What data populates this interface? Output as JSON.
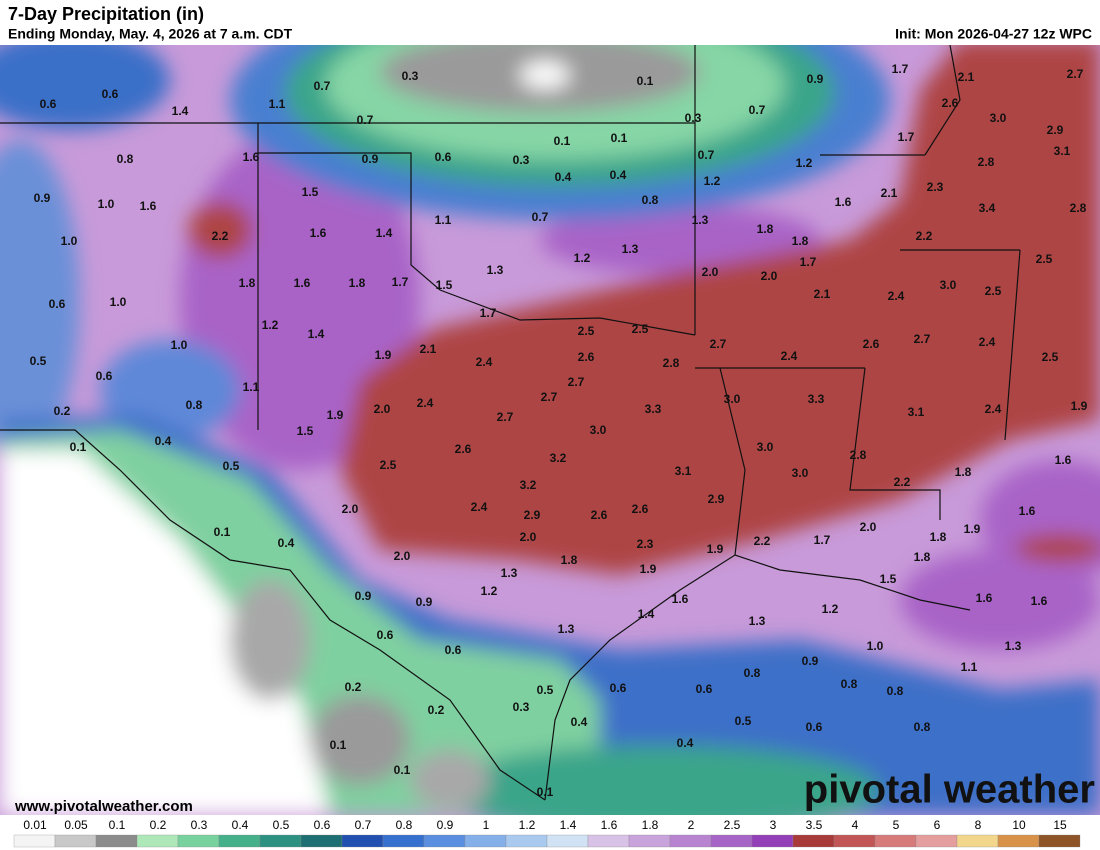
{
  "map": {
    "title": "7-Day Precipitation (in)",
    "subtitle": "Ending Monday, May. 4, 2026 at 7 a.m. CDT",
    "init": "Init: Mon 2026-04-27 12z WPC",
    "website": "www.pivotalweather.com",
    "watermark": "pivotal weather",
    "values": [
      "0.6",
      "0.6",
      "1.4",
      "1.1",
      "0.7",
      "0.3",
      "0.1",
      "0.9",
      "1.7",
      "2.1",
      "2.7",
      "0.7",
      "0.3",
      "0.7",
      "2.6",
      "3.0",
      "2.9",
      "0.8",
      "1.6",
      "0.9",
      "0.6",
      "0.3",
      "0.1",
      "0.1",
      "0.7",
      "1.2",
      "1.7",
      "2.8",
      "3.1",
      "0.9",
      "1.0",
      "1.6",
      "1.5",
      "0.4",
      "0.4",
      "1.2",
      "0.8",
      "1.6",
      "2.1",
      "2.3",
      "3.4",
      "2.8",
      "1.0",
      "2.2",
      "1.6",
      "1.4",
      "1.1",
      "0.7",
      "1.3",
      "1.8",
      "1.8",
      "2.2",
      "1.3",
      "1.2",
      "1.3",
      "2.0",
      "2.0",
      "1.7",
      "2.5",
      "0.6",
      "1.0",
      "1.8",
      "1.6",
      "1.8",
      "1.7",
      "1.5",
      "1.7",
      "2.1",
      "2.4",
      "3.0",
      "2.5",
      "1.2",
      "1.4",
      "2.5",
      "2.5",
      "2.7",
      "2.4",
      "2.6",
      "2.7",
      "2.4",
      "2.5",
      "0.5",
      "0.6",
      "1.0",
      "1.9",
      "2.1",
      "2.4",
      "2.6",
      "2.8",
      "0.2",
      "0.8",
      "1.1",
      "1.9",
      "2.0",
      "2.4",
      "2.7",
      "2.7",
      "3.3",
      "3.0",
      "3.3",
      "3.1",
      "2.4",
      "1.9",
      "0.1",
      "0.4",
      "1.5",
      "2.7",
      "3.0",
      "2.6",
      "3.2",
      "3.1",
      "3.0",
      "3.0",
      "2.8",
      "1.8",
      "1.6",
      "0.5",
      "2.5",
      "3.2",
      "2.9",
      "2.2",
      "2.0",
      "2.4",
      "2.9",
      "2.6",
      "2.6",
      "2.0",
      "1.6",
      "1.9",
      "0.1",
      "0.4",
      "2.0",
      "2.3",
      "1.9",
      "2.2",
      "1.7",
      "1.8",
      "2.0",
      "1.3",
      "1.8",
      "1.9",
      "1.8",
      "1.2",
      "1.6",
      "1.5",
      "0.9",
      "0.9",
      "1.4",
      "1.2",
      "1.6",
      "1.6",
      "0.6",
      "1.3",
      "1.3",
      "1.0",
      "1.3",
      "0.6",
      "0.9",
      "1.1",
      "0.2",
      "0.5",
      "0.6",
      "0.6",
      "0.8",
      "0.8",
      "0.8",
      "0.2",
      "0.3",
      "0.4",
      "0.5",
      "0.6",
      "0.8",
      "0.1",
      "0.4",
      "0.1",
      "0.1"
    ]
  },
  "colorbar": {
    "labels": [
      "0.01",
      "0.05",
      "0.1",
      "0.2",
      "0.3",
      "0.4",
      "0.5",
      "0.6",
      "0.7",
      "0.8",
      "0.9",
      "1",
      "1.2",
      "1.4",
      "1.6",
      "1.8",
      "2",
      "2.5",
      "3",
      "3.5",
      "4",
      "5",
      "6",
      "8",
      "10",
      "15"
    ],
    "colors": [
      "#f4f4f4",
      "#c8c8c8",
      "#8c8c8c",
      "#aee8b8",
      "#78d29e",
      "#45b089",
      "#2c9180",
      "#1e6f74",
      "#2150b0",
      "#3670cf",
      "#5a8ee0",
      "#84afe8",
      "#a9caee",
      "#d0e2f4",
      "#d9c2e7",
      "#c9a3dc",
      "#b884d1",
      "#a664c6",
      "#9340b8",
      "#a83a3a",
      "#c25656",
      "#d67a7a",
      "#e49e9e",
      "#f2d68c",
      "#d8924a",
      "#8e5326"
    ]
  }
}
